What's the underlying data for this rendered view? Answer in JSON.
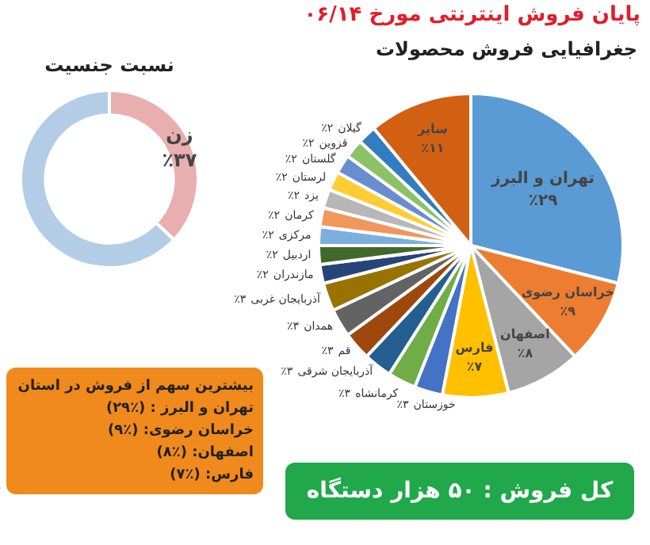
{
  "chart_data": [
    {
      "type": "donut",
      "title": "نسبت جنسیت",
      "categories": [
        "زن",
        null
      ],
      "values": [
        37,
        63
      ],
      "colors": [
        "#e8aeb0",
        "#b4cde6"
      ],
      "value_labels": [
        "٪۳۷",
        null
      ],
      "legend": false,
      "annotations": [
        "بیشترین سهم از فروش در استان",
        "تهران و البرز : (٪۲۹)",
        "خراسان رضوی: (٪۹)",
        "اصفهان: (٪۸)",
        "فارس: (٪۷)"
      ]
    },
    {
      "type": "pie",
      "title": "جغرافیایی فروش محصولات",
      "categories": [
        "تهران و البرز",
        "خراسان رضوی",
        "اصفهان",
        "فارس",
        "خوزستان",
        "کرمانشاه",
        "آذربایجان شرقی",
        "قم",
        "همدان",
        "آذربایجان غربی",
        "مازندران",
        "اردبیل",
        "مرکزی",
        "کرمان",
        "یزد",
        "لرستان",
        "گلستان",
        "قزوین",
        "گیلان",
        "سایر"
      ],
      "values": [
        29,
        9,
        8,
        7,
        3,
        3,
        3,
        3,
        3,
        3,
        2,
        2,
        2,
        2,
        2,
        2,
        2,
        2,
        2,
        11
      ],
      "colors": [
        "#5b9bd5",
        "#ed7d31",
        "#a5a5a5",
        "#ffc000",
        "#4472c4",
        "#70ad47",
        "#255e91",
        "#9e480e",
        "#636363",
        "#997300",
        "#264478",
        "#43682b",
        "#7cafdd",
        "#f1975a",
        "#b7b7b7",
        "#ffcd33",
        "#698ed0",
        "#8cc168",
        "#327dc2",
        "#d26012"
      ],
      "value_labels": [
        "٪۲۹",
        "٪۹",
        "٪۸",
        "٪۷",
        "٪۳",
        "٪۳",
        "٪۳",
        "٪۳",
        "٪۳",
        "٪۳",
        "٪۲",
        "٪۲",
        "٪۲",
        "٪۲",
        "٪۲",
        "٪۲",
        "٪۲",
        "٪۲",
        "٪۲",
        "٪۱۱"
      ],
      "legend": false,
      "annotations": [
        "پایان فروش اینترنتی مورخ ۰۶/۱۴",
        "کل فروش : ۵۰ هزار دستگاه"
      ]
    }
  ]
}
